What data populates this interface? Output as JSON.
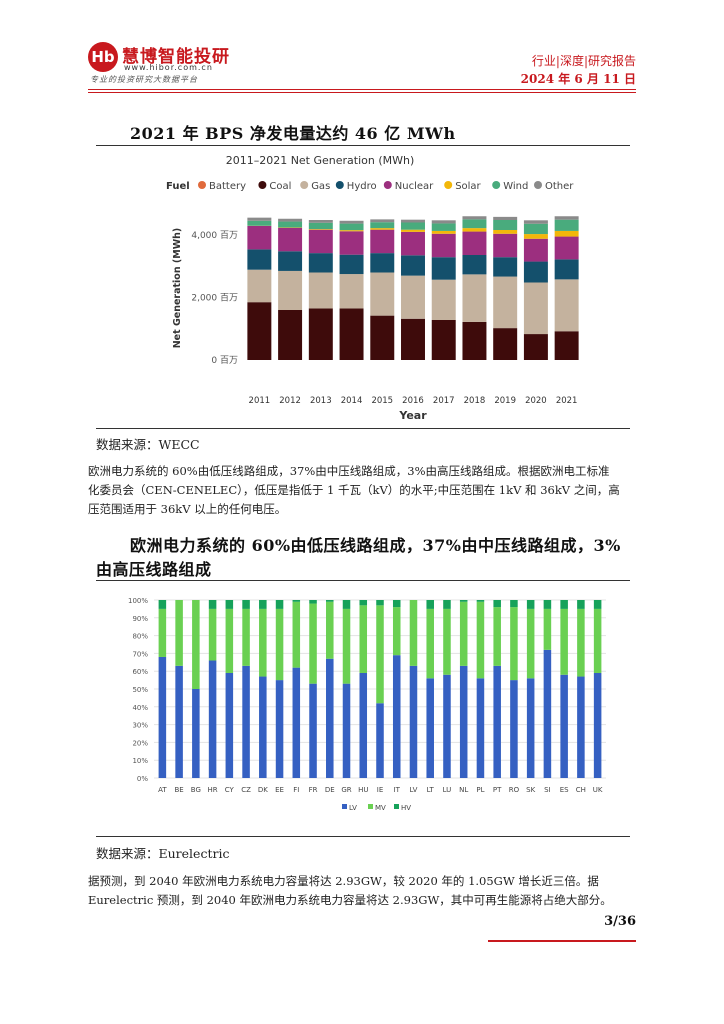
{
  "header": {
    "logo_mark": "Hb",
    "logo_name": "慧博智能投研",
    "logo_url": "www.hibor.com.cn",
    "logo_slogan": "专业的投资研究大数据平台",
    "report_type": "行业|深度|研究报告",
    "date": "2024 年 6 月 11 日"
  },
  "figure1": {
    "title": "2021 年 BPS 净发电量达约 46 亿 MWh",
    "source": "数据来源：WECC"
  },
  "colors": {
    "battery": "#e06a3c",
    "coal": "#3e0b0b",
    "gas": "#c4b29e",
    "hydro": "#14506c",
    "nuclear": "#9c2f7f",
    "solar": "#f2b70a",
    "wind": "#49ab7d",
    "other": "#8a8a8a",
    "lv": "#3560c2",
    "mv": "#6ad052",
    "hv": "#16a25a",
    "brand": "#c8191e"
  },
  "chart_data": [
    {
      "type": "bar",
      "stacked": true,
      "title": "2011–2021 Net Generation (MWh)",
      "legend_title": "Fuel",
      "legend_position": "top",
      "xlabel": "Year",
      "ylabel": "Net Generation (MWh)",
      "ylim": [
        0,
        4800
      ],
      "yticks": [
        0,
        2000,
        4000
      ],
      "ytick_labels": [
        "0 百万",
        "2,000 百万",
        "4,000 百万"
      ],
      "categories": [
        "2011",
        "2012",
        "2013",
        "2014",
        "2015",
        "2016",
        "2017",
        "2018",
        "2019",
        "2020",
        "2021"
      ],
      "series": [
        {
          "name": "Coal",
          "color_key": "coal",
          "values": [
            1850,
            1600,
            1650,
            1650,
            1420,
            1320,
            1280,
            1220,
            1020,
            830,
            920
          ]
        },
        {
          "name": "Gas",
          "color_key": "gas",
          "values": [
            1040,
            1250,
            1150,
            1100,
            1380,
            1380,
            1290,
            1520,
            1650,
            1650,
            1660
          ]
        },
        {
          "name": "Hydro",
          "color_key": "hydro",
          "values": [
            650,
            630,
            620,
            620,
            620,
            650,
            720,
            620,
            620,
            670,
            640
          ]
        },
        {
          "name": "Nuclear",
          "color_key": "nuclear",
          "values": [
            750,
            750,
            750,
            750,
            750,
            750,
            750,
            750,
            750,
            730,
            730
          ]
        },
        {
          "name": "Solar",
          "color_key": "solar",
          "values": [
            5,
            10,
            20,
            35,
            50,
            70,
            90,
            110,
            120,
            150,
            180
          ]
        },
        {
          "name": "Wind",
          "color_key": "wind",
          "values": [
            160,
            190,
            200,
            210,
            190,
            230,
            240,
            280,
            320,
            330,
            360
          ]
        },
        {
          "name": "Other",
          "color_key": "other",
          "values": [
            100,
            90,
            90,
            90,
            90,
            90,
            100,
            100,
            100,
            110,
            110
          ]
        },
        {
          "name": "Battery",
          "color_key": "battery",
          "values": [
            0,
            0,
            0,
            0,
            0,
            0,
            0,
            0,
            0,
            0,
            0
          ]
        }
      ],
      "legend_order": [
        "Battery",
        "Coal",
        "Gas",
        "Hydro",
        "Nuclear",
        "Solar",
        "Wind",
        "Other"
      ]
    },
    {
      "type": "bar",
      "stacked": true,
      "ylim": [
        0,
        100
      ],
      "yticks": [
        0,
        10,
        20,
        30,
        40,
        50,
        60,
        70,
        80,
        90,
        100
      ],
      "ytick_labels": [
        "0%",
        "10%",
        "20%",
        "30%",
        "40%",
        "50%",
        "60%",
        "70%",
        "80%",
        "90%",
        "100%"
      ],
      "legend_position": "bottom",
      "categories": [
        "AT",
        "BE",
        "BG",
        "HR",
        "CY",
        "CZ",
        "DK",
        "EE",
        "FI",
        "FR",
        "DE",
        "GR",
        "HU",
        "IE",
        "IT",
        "LV",
        "LT",
        "LU",
        "NL",
        "PL",
        "PT",
        "RO",
        "SK",
        "SI",
        "ES",
        "CH",
        "UK"
      ],
      "series": [
        {
          "name": "LV",
          "color_key": "lv",
          "values": [
            68,
            63,
            50,
            66,
            59,
            63,
            57,
            55,
            62,
            53,
            67,
            53,
            59,
            42,
            69,
            63,
            56,
            58,
            63,
            56,
            63,
            55,
            56,
            72,
            58,
            57,
            59
          ]
        },
        {
          "name": "MV",
          "color_key": "mv",
          "values": [
            27,
            37,
            50,
            29,
            36,
            32,
            38,
            40,
            37,
            45,
            32,
            42,
            38,
            55,
            27,
            37,
            39,
            37,
            36,
            43,
            33,
            41,
            39,
            23,
            37,
            38,
            36
          ]
        },
        {
          "name": "HV",
          "color_key": "hv",
          "values": [
            5,
            0,
            0,
            5,
            5,
            5,
            5,
            5,
            1,
            2,
            1,
            5,
            3,
            3,
            4,
            0,
            5,
            5,
            1,
            1,
            4,
            4,
            5,
            5,
            5,
            5,
            5
          ]
        }
      ]
    }
  ],
  "para1": {
    "line1": "欧洲电力系统的 60%由低压线路组成，37%由中压线路组成，3%由高压线路组成。根据欧洲电工标准",
    "line2": "化委员会（CEN-CENELEC），低压是指低于 1 千瓦（kV）的水平;中压范围在 1kV 和 36kV 之间，高",
    "line3": "压范围适用于 36kV 以上的任何电压。"
  },
  "figure2": {
    "title_line1": "欧洲电力系统的 60%由低压线路组成，37%由中压线路组成，3%",
    "title_line2": "由高压线路组成",
    "source": "数据来源：Eurelectric"
  },
  "para2": {
    "line1": "据预测，到 2040 年欧洲电力系统电力容量将达 2.93GW，较 2020 年的 1.05GW 增长近三倍。据",
    "line2": "Eurelectric 预测，到 2040 年欧洲电力系统电力容量将达 2.93GW，其中可再生能源将占绝大部分。"
  },
  "footer": {
    "page": "3/36"
  }
}
